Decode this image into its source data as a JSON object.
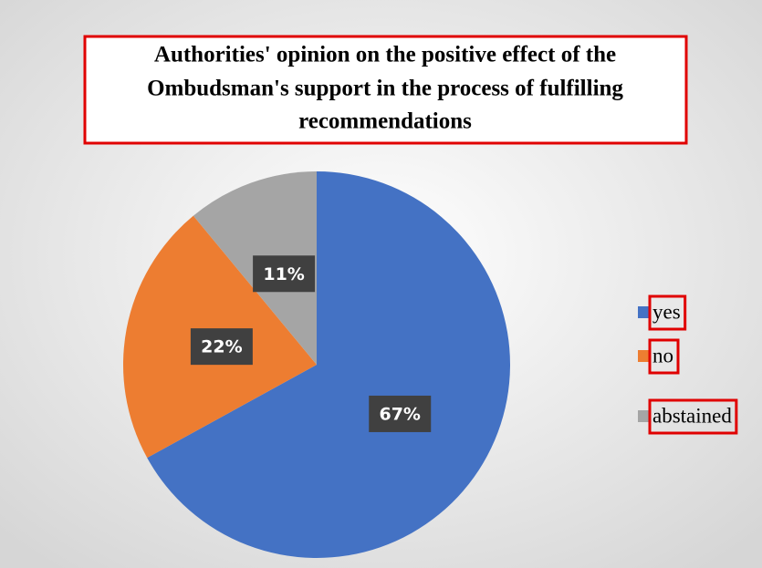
{
  "chart_data": {
    "type": "pie",
    "title": [
      "Authorities' opinion on the positive effect of the",
      "Ombudsman's support in the process of fulfilling",
      "recommendations"
    ],
    "categories": [
      "yes",
      "no",
      "abstained"
    ],
    "values": [
      67,
      22,
      11
    ],
    "value_labels": [
      "67%",
      "22%",
      "11%"
    ],
    "colors": [
      "#4472c4",
      "#ed7d31",
      "#a5a5a5"
    ],
    "legend": "right"
  }
}
